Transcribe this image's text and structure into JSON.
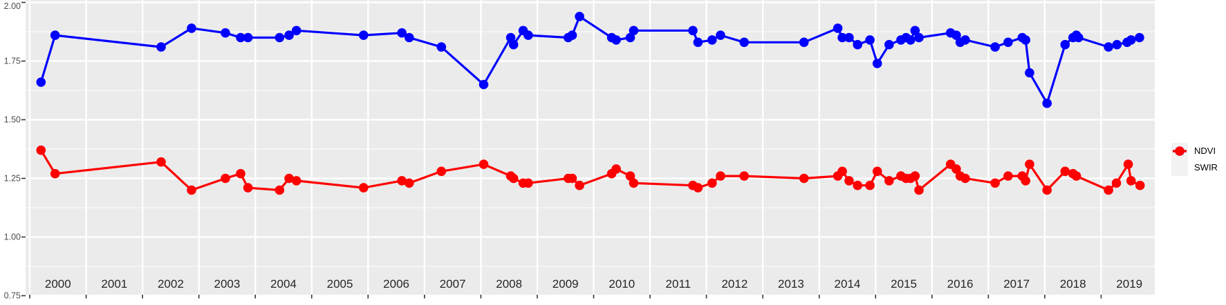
{
  "figure": {
    "background": "#FFFFFF",
    "panel_background": "#EBEBEB",
    "grid_color": "#FFFFFF",
    "axis_text_color": "#4D4D4D",
    "x_label_color": "#262626",
    "tick_mark_color": "#333333"
  },
  "legend": {
    "key_background": "#F2F2F2",
    "items": [
      {
        "label": "NDVI",
        "color": "#0000FF"
      },
      {
        "label": "SWIR",
        "color": "#FF0000"
      }
    ]
  },
  "y_axis": {
    "tick_labels": [
      "2.00",
      "1.75",
      "1.50",
      "1.25",
      "1.00",
      "0.75"
    ],
    "tick_values": [
      2.0,
      1.75,
      1.5,
      1.25,
      1.0,
      0.75
    ],
    "minor_values": [
      1.875,
      1.625,
      1.375,
      1.125,
      0.875
    ]
  },
  "x_axis": {
    "tick_labels": [
      "2000",
      "2001",
      "2002",
      "2003",
      "2004",
      "2005",
      "2006",
      "2007",
      "2008",
      "2009",
      "2010",
      "2011",
      "2012",
      "2013",
      "2014",
      "2015",
      "2016",
      "2017",
      "2018",
      "2019"
    ]
  },
  "chart_data": {
    "type": "line",
    "title": "",
    "xlabel": "",
    "ylabel": "",
    "ylim": [
      0.75,
      2.0
    ],
    "xlim": [
      2000,
      2020
    ],
    "grid": true,
    "legend_position": "right",
    "x_tick_years": [
      2000,
      2001,
      2002,
      2003,
      2004,
      2005,
      2006,
      2007,
      2008,
      2009,
      2010,
      2011,
      2012,
      2013,
      2014,
      2015,
      2016,
      2017,
      2018,
      2019
    ],
    "series": [
      {
        "name": "NDVI",
        "color": "#0000FF",
        "points": [
          [
            2000.2,
            1.66
          ],
          [
            2000.45,
            1.86
          ],
          [
            2002.33,
            1.81
          ],
          [
            2002.87,
            1.89
          ],
          [
            2003.47,
            1.87
          ],
          [
            2003.74,
            1.85
          ],
          [
            2003.87,
            1.85
          ],
          [
            2004.43,
            1.85
          ],
          [
            2004.6,
            1.86
          ],
          [
            2004.73,
            1.88
          ],
          [
            2005.92,
            1.86
          ],
          [
            2006.6,
            1.87
          ],
          [
            2006.73,
            1.85
          ],
          [
            2007.3,
            1.81
          ],
          [
            2008.05,
            1.65
          ],
          [
            2008.53,
            1.85
          ],
          [
            2008.58,
            1.82
          ],
          [
            2008.75,
            1.88
          ],
          [
            2008.84,
            1.86
          ],
          [
            2009.55,
            1.85
          ],
          [
            2009.62,
            1.86
          ],
          [
            2009.75,
            1.94
          ],
          [
            2010.32,
            1.85
          ],
          [
            2010.4,
            1.84
          ],
          [
            2010.65,
            1.85
          ],
          [
            2010.71,
            1.88
          ],
          [
            2011.76,
            1.88
          ],
          [
            2011.85,
            1.83
          ],
          [
            2012.1,
            1.84
          ],
          [
            2012.25,
            1.86
          ],
          [
            2012.67,
            1.83
          ],
          [
            2013.73,
            1.83
          ],
          [
            2014.33,
            1.89
          ],
          [
            2014.41,
            1.85
          ],
          [
            2014.53,
            1.85
          ],
          [
            2014.68,
            1.82
          ],
          [
            2014.9,
            1.84
          ],
          [
            2015.03,
            1.74
          ],
          [
            2015.24,
            1.82
          ],
          [
            2015.45,
            1.84
          ],
          [
            2015.54,
            1.85
          ],
          [
            2015.62,
            1.84
          ],
          [
            2015.7,
            1.88
          ],
          [
            2015.77,
            1.85
          ],
          [
            2016.33,
            1.87
          ],
          [
            2016.43,
            1.86
          ],
          [
            2016.5,
            1.83
          ],
          [
            2016.59,
            1.84
          ],
          [
            2017.12,
            1.81
          ],
          [
            2017.35,
            1.83
          ],
          [
            2017.6,
            1.85
          ],
          [
            2017.66,
            1.84
          ],
          [
            2017.73,
            1.7
          ],
          [
            2018.04,
            1.57
          ],
          [
            2018.36,
            1.82
          ],
          [
            2018.5,
            1.85
          ],
          [
            2018.56,
            1.86
          ],
          [
            2018.6,
            1.85
          ],
          [
            2019.13,
            1.81
          ],
          [
            2019.28,
            1.82
          ],
          [
            2019.46,
            1.83
          ],
          [
            2019.53,
            1.84
          ],
          [
            2019.68,
            1.85
          ]
        ]
      },
      {
        "name": "SWIR",
        "color": "#FF0000",
        "points": [
          [
            2000.2,
            1.37
          ],
          [
            2000.45,
            1.27
          ],
          [
            2002.33,
            1.32
          ],
          [
            2002.87,
            1.2
          ],
          [
            2003.47,
            1.25
          ],
          [
            2003.74,
            1.27
          ],
          [
            2003.87,
            1.21
          ],
          [
            2004.43,
            1.2
          ],
          [
            2004.6,
            1.25
          ],
          [
            2004.73,
            1.24
          ],
          [
            2005.92,
            1.21
          ],
          [
            2006.6,
            1.24
          ],
          [
            2006.73,
            1.23
          ],
          [
            2007.3,
            1.28
          ],
          [
            2008.05,
            1.31
          ],
          [
            2008.53,
            1.26
          ],
          [
            2008.58,
            1.25
          ],
          [
            2008.75,
            1.23
          ],
          [
            2008.84,
            1.23
          ],
          [
            2009.55,
            1.25
          ],
          [
            2009.62,
            1.25
          ],
          [
            2009.75,
            1.22
          ],
          [
            2010.32,
            1.27
          ],
          [
            2010.4,
            1.29
          ],
          [
            2010.65,
            1.26
          ],
          [
            2010.71,
            1.23
          ],
          [
            2011.76,
            1.22
          ],
          [
            2011.85,
            1.21
          ],
          [
            2012.1,
            1.23
          ],
          [
            2012.25,
            1.26
          ],
          [
            2012.67,
            1.26
          ],
          [
            2013.73,
            1.25
          ],
          [
            2014.33,
            1.26
          ],
          [
            2014.41,
            1.28
          ],
          [
            2014.53,
            1.24
          ],
          [
            2014.68,
            1.22
          ],
          [
            2014.9,
            1.22
          ],
          [
            2015.03,
            1.28
          ],
          [
            2015.24,
            1.24
          ],
          [
            2015.45,
            1.26
          ],
          [
            2015.54,
            1.25
          ],
          [
            2015.62,
            1.25
          ],
          [
            2015.7,
            1.26
          ],
          [
            2015.77,
            1.2
          ],
          [
            2016.33,
            1.31
          ],
          [
            2016.43,
            1.29
          ],
          [
            2016.5,
            1.26
          ],
          [
            2016.59,
            1.25
          ],
          [
            2017.12,
            1.23
          ],
          [
            2017.35,
            1.26
          ],
          [
            2017.6,
            1.26
          ],
          [
            2017.66,
            1.24
          ],
          [
            2017.73,
            1.31
          ],
          [
            2018.04,
            1.2
          ],
          [
            2018.36,
            1.28
          ],
          [
            2018.5,
            1.27
          ],
          [
            2018.56,
            1.26
          ],
          [
            2019.13,
            1.2
          ],
          [
            2019.27,
            1.23
          ],
          [
            2019.48,
            1.31
          ],
          [
            2019.53,
            1.24
          ],
          [
            2019.69,
            1.22
          ]
        ]
      }
    ]
  }
}
